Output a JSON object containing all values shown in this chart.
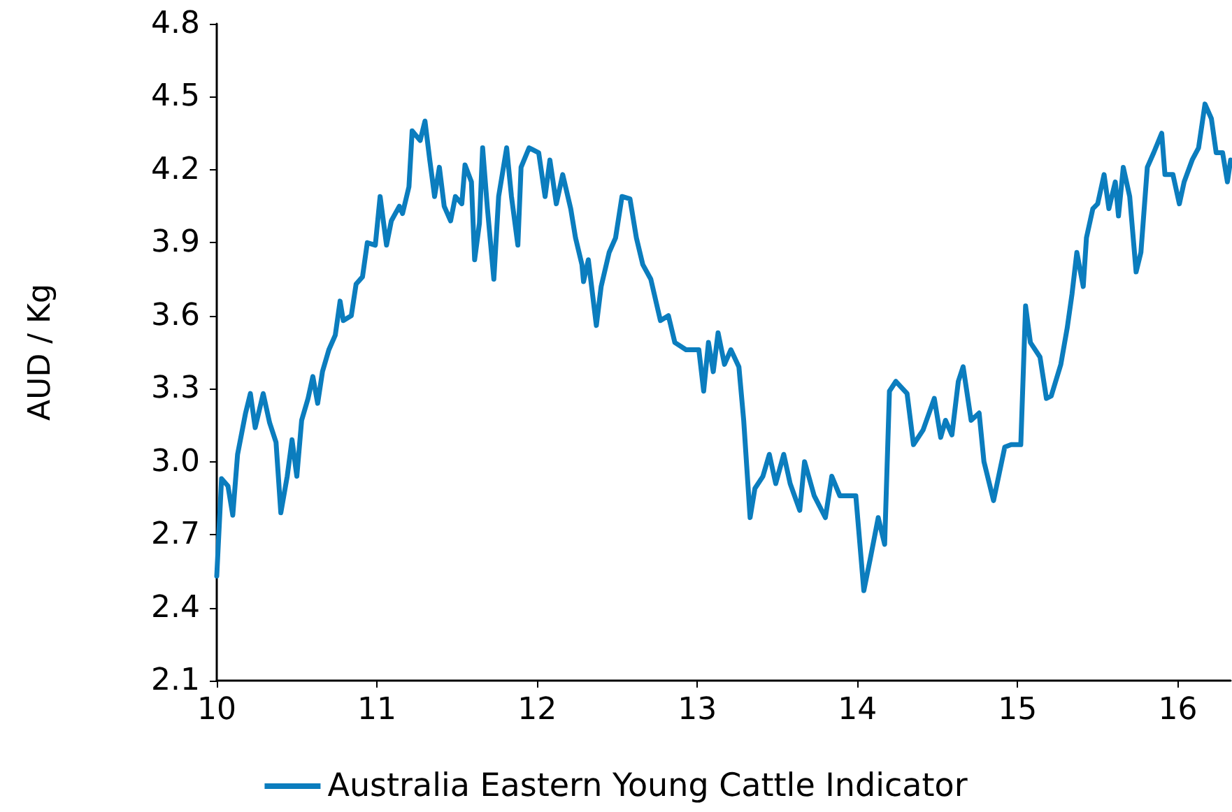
{
  "chart_data": {
    "type": "line",
    "ylabel": "AUD / Kg",
    "xlim": [
      10,
      16.33
    ],
    "xticks": [
      10,
      11,
      12,
      13,
      14,
      15,
      16
    ],
    "ylim": [
      2.1,
      4.8
    ],
    "yticks": [
      2.1,
      2.4,
      2.7,
      {
        "value": 3,
        "label": "3.0"
      },
      3.3,
      3.6,
      3.9,
      4.2,
      4.5,
      4.8
    ],
    "grid": false,
    "legend": "bottom",
    "marker": "none",
    "line_style": "solid",
    "x": [
      10.0,
      10.03,
      10.07,
      10.1,
      10.13,
      10.18,
      10.21,
      10.24,
      10.29,
      10.33,
      10.37,
      10.4,
      10.44,
      10.47,
      10.5,
      10.53,
      10.57,
      10.6,
      10.63,
      10.66,
      10.7,
      10.74,
      10.77,
      10.79,
      10.84,
      10.87,
      10.91,
      10.94,
      10.99,
      11.02,
      11.06,
      11.09,
      11.14,
      11.16,
      11.2,
      11.22,
      11.27,
      11.3,
      11.33,
      11.36,
      11.39,
      11.42,
      11.46,
      11.49,
      11.53,
      11.55,
      11.59,
      11.61,
      11.64,
      11.66,
      11.69,
      11.73,
      11.76,
      11.81,
      11.84,
      11.88,
      11.9,
      11.95,
      12.01,
      12.05,
      12.08,
      12.12,
      12.16,
      12.21,
      12.24,
      12.28,
      12.29,
      12.32,
      12.37,
      12.4,
      12.45,
      12.49,
      12.53,
      12.58,
      12.62,
      12.66,
      12.71,
      12.77,
      12.82,
      12.86,
      12.93,
      13.01,
      13.04,
      13.07,
      13.1,
      13.13,
      13.17,
      13.21,
      13.26,
      13.29,
      13.33,
      13.36,
      13.41,
      13.45,
      13.49,
      13.54,
      13.58,
      13.64,
      13.67,
      13.73,
      13.8,
      13.84,
      13.89,
      13.99,
      14.04,
      14.08,
      14.13,
      14.17,
      14.2,
      14.24,
      14.31,
      14.35,
      14.41,
      14.48,
      14.52,
      14.55,
      14.59,
      14.63,
      14.66,
      14.71,
      14.76,
      14.79,
      14.85,
      14.92,
      14.96,
      15.02,
      15.05,
      15.08,
      15.14,
      15.18,
      15.21,
      15.27,
      15.31,
      15.34,
      15.37,
      15.41,
      15.43,
      15.47,
      15.5,
      15.54,
      15.57,
      15.61,
      15.63,
      15.66,
      15.7,
      15.74,
      15.77,
      15.81,
      15.85,
      15.9,
      15.92,
      15.97,
      16.01,
      16.04,
      16.09,
      16.13,
      16.17,
      16.21,
      16.24,
      16.28,
      16.31,
      16.33
    ],
    "series": [
      {
        "name": "Australia Eastern Young Cattle Indicator",
        "color": "#0b7dbe",
        "values": [
          2.53,
          2.93,
          2.9,
          2.78,
          3.03,
          3.2,
          3.28,
          3.14,
          3.28,
          3.16,
          3.08,
          2.79,
          2.94,
          3.09,
          2.94,
          3.17,
          3.26,
          3.35,
          3.24,
          3.37,
          3.46,
          3.52,
          3.66,
          3.58,
          3.6,
          3.73,
          3.76,
          3.9,
          3.89,
          4.09,
          3.89,
          3.99,
          4.05,
          4.02,
          4.13,
          4.36,
          4.32,
          4.4,
          4.24,
          4.09,
          4.21,
          4.05,
          3.99,
          4.09,
          4.06,
          4.22,
          4.15,
          3.83,
          3.98,
          4.29,
          4.04,
          3.75,
          4.09,
          4.29,
          4.09,
          3.89,
          4.21,
          4.29,
          4.27,
          4.09,
          4.24,
          4.06,
          4.18,
          4.04,
          3.92,
          3.81,
          3.74,
          3.83,
          3.56,
          3.72,
          3.86,
          3.92,
          4.09,
          4.08,
          3.92,
          3.81,
          3.75,
          3.58,
          3.6,
          3.49,
          3.46,
          3.46,
          3.29,
          3.49,
          3.37,
          3.53,
          3.4,
          3.46,
          3.39,
          3.17,
          2.77,
          2.89,
          2.94,
          3.03,
          2.91,
          3.03,
          2.91,
          2.8,
          3.0,
          2.86,
          2.77,
          2.94,
          2.86,
          2.86,
          2.47,
          2.6,
          2.77,
          2.66,
          3.29,
          3.33,
          3.28,
          3.07,
          3.13,
          3.26,
          3.1,
          3.17,
          3.11,
          3.33,
          3.39,
          3.17,
          3.2,
          3.0,
          2.84,
          3.06,
          3.07,
          3.07,
          3.64,
          3.49,
          3.43,
          3.26,
          3.27,
          3.4,
          3.55,
          3.69,
          3.86,
          3.72,
          3.92,
          4.04,
          4.06,
          4.18,
          4.04,
          4.15,
          4.01,
          4.21,
          4.09,
          3.78,
          3.86,
          4.21,
          4.27,
          4.35,
          4.18,
          4.18,
          4.06,
          4.15,
          4.24,
          4.29,
          4.47,
          4.41,
          4.27,
          4.27,
          4.15,
          4.24
        ]
      }
    ]
  }
}
